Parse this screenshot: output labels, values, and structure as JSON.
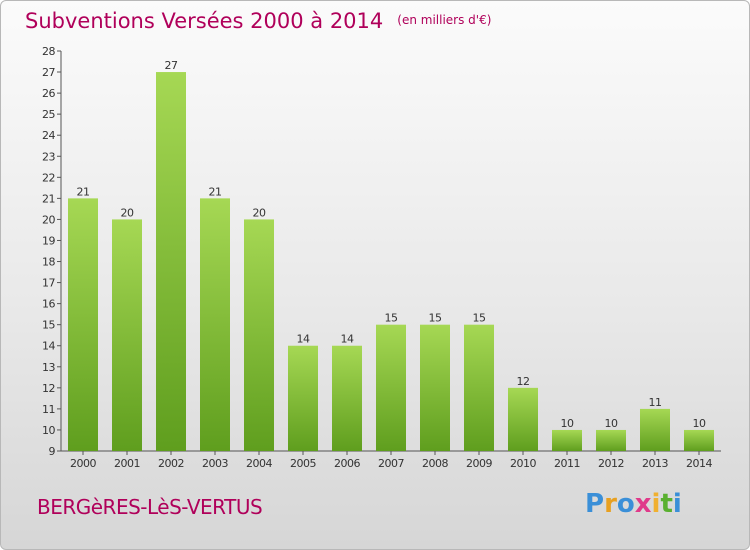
{
  "header": {
    "title": "Subventions Versées 2000 à 2014",
    "subtitle": "(en milliers d'€)"
  },
  "footer": {
    "commune": "BERGèRES-LèS-VERTUS",
    "logo": [
      "P",
      "r",
      "o",
      "x",
      "i",
      "t",
      "i"
    ]
  },
  "colors": {
    "title": "#b0005a",
    "bar_light": "#a6d854",
    "bar_dark": "#5f9e1e"
  },
  "chart_data": {
    "type": "bar",
    "categories": [
      "2000",
      "2001",
      "2002",
      "2003",
      "2004",
      "2005",
      "2006",
      "2007",
      "2008",
      "2009",
      "2010",
      "2011",
      "2012",
      "2013",
      "2014"
    ],
    "values": [
      21,
      20,
      27,
      21,
      20,
      14,
      14,
      15,
      15,
      15,
      12,
      10,
      10,
      11,
      10
    ],
    "ylim": [
      9,
      28
    ],
    "yticks": [
      9,
      10,
      11,
      12,
      13,
      14,
      15,
      16,
      17,
      18,
      19,
      20,
      21,
      22,
      23,
      24,
      25,
      26,
      27,
      28
    ],
    "grid": false,
    "data_labels": true
  }
}
